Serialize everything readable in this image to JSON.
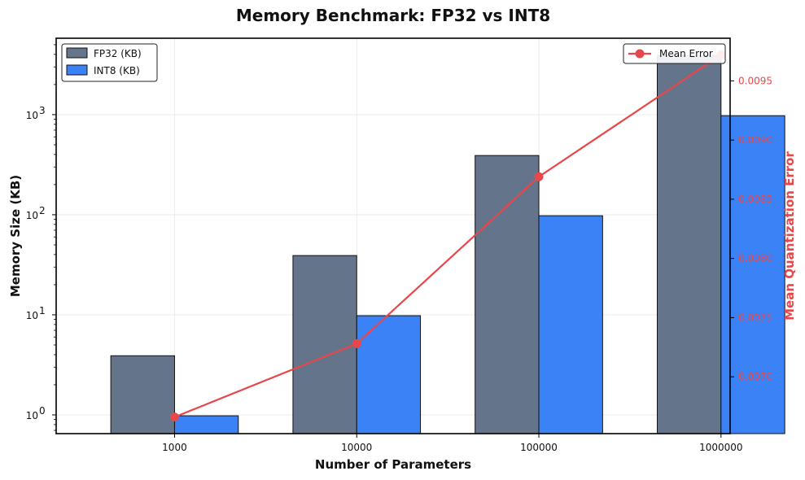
{
  "chart_data": {
    "type": "bar",
    "title": "Memory Benchmark: FP32 vs INT8",
    "xlabel": "Number of Parameters",
    "ylabel": "Memory Size (KB)",
    "y2label": "Mean Quantization Error",
    "categories": [
      "1000",
      "10000",
      "100000",
      "1000000"
    ],
    "yscale": "log",
    "ylim": [
      0.65,
      5800
    ],
    "y_ticks": [
      {
        "value": 1,
        "base": "10",
        "exp": "0"
      },
      {
        "value": 10,
        "base": "10",
        "exp": "1"
      },
      {
        "value": 100,
        "base": "10",
        "exp": "2"
      },
      {
        "value": 1000,
        "base": "10",
        "exp": "3"
      }
    ],
    "series": [
      {
        "name": "FP32 (KB)",
        "values": [
          3.9,
          39.1,
          390.6,
          3906.2
        ],
        "color": "#64748b"
      },
      {
        "name": "INT8 (KB)",
        "values": [
          0.98,
          9.8,
          97.7,
          976.6
        ],
        "color": "#3b82f6"
      }
    ],
    "line_series": {
      "name": "Mean Error",
      "values": [
        0.00666,
        0.00728,
        0.00869,
        0.00972
      ],
      "color": "#e8474a",
      "axis": "right"
    },
    "y2lim": [
      0.00652,
      0.00986
    ],
    "y2_ticks": [
      "0.0070",
      "0.0075",
      "0.0080",
      "0.0085",
      "0.0090",
      "0.0095"
    ],
    "legend_left": "top-left",
    "legend_right": "top-right",
    "grid": true
  }
}
